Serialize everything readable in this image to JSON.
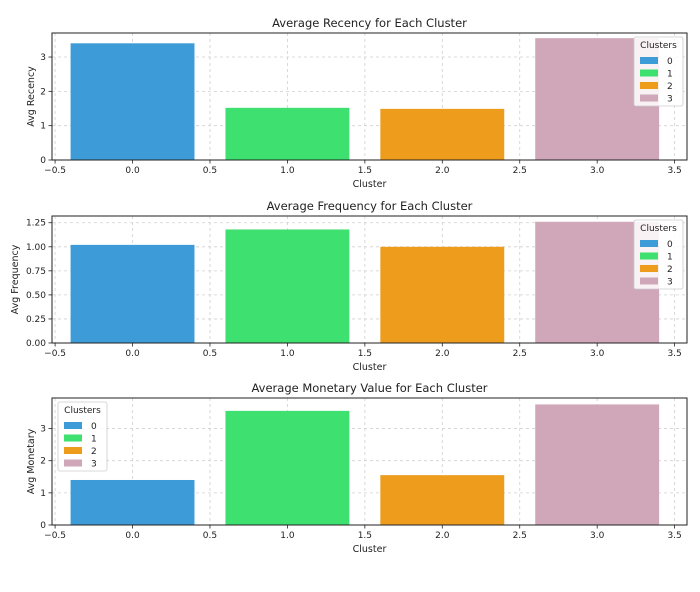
{
  "chart_data": [
    {
      "type": "bar",
      "title": "Average Recency for Each Cluster",
      "xlabel": "Cluster",
      "ylabel": "Avg Recency",
      "x": [
        0,
        1,
        2,
        3
      ],
      "values": [
        3.4,
        1.52,
        1.49,
        3.55
      ],
      "xlim": [
        -0.52,
        3.58
      ],
      "ylim": [
        0,
        3.7
      ],
      "xticks": [
        -0.5,
        0.0,
        0.5,
        1.0,
        1.5,
        2.0,
        2.5,
        3.0,
        3.5
      ],
      "xtick_labels": [
        "−0.5",
        "0.0",
        "0.5",
        "1.0",
        "1.5",
        "2.0",
        "2.5",
        "3.0",
        "3.5"
      ],
      "yticks": [
        0,
        1,
        2,
        3
      ],
      "ytick_labels": [
        "0",
        "1",
        "2",
        "3"
      ],
      "grid": true,
      "legend": {
        "title": "Clusters",
        "position": "top-right",
        "entries": [
          "0",
          "1",
          "2",
          "3"
        ]
      }
    },
    {
      "type": "bar",
      "title": "Average Frequency for Each Cluster",
      "xlabel": "Cluster",
      "ylabel": "Avg Frequency",
      "x": [
        0,
        1,
        2,
        3
      ],
      "values": [
        1.02,
        1.18,
        1.0,
        1.26
      ],
      "xlim": [
        -0.52,
        3.58
      ],
      "ylim": [
        0,
        1.32
      ],
      "xticks": [
        -0.5,
        0.0,
        0.5,
        1.0,
        1.5,
        2.0,
        2.5,
        3.0,
        3.5
      ],
      "xtick_labels": [
        "−0.5",
        "0.0",
        "0.5",
        "1.0",
        "1.5",
        "2.0",
        "2.5",
        "3.0",
        "3.5"
      ],
      "yticks": [
        0,
        0.25,
        0.5,
        0.75,
        1.0,
        1.25
      ],
      "ytick_labels": [
        "0.00",
        "0.25",
        "0.50",
        "0.75",
        "1.00",
        "1.25"
      ],
      "grid": true,
      "legend": {
        "title": "Clusters",
        "position": "top-right",
        "entries": [
          "0",
          "1",
          "2",
          "3"
        ]
      }
    },
    {
      "type": "bar",
      "title": "Average Monetary Value for Each Cluster",
      "xlabel": "Cluster",
      "ylabel": "Avg Monetary",
      "x": [
        0,
        1,
        2,
        3
      ],
      "values": [
        1.4,
        3.55,
        1.55,
        3.75
      ],
      "xlim": [
        -0.52,
        3.58
      ],
      "ylim": [
        0,
        3.95
      ],
      "xticks": [
        -0.5,
        0.0,
        0.5,
        1.0,
        1.5,
        2.0,
        2.5,
        3.0,
        3.5
      ],
      "xtick_labels": [
        "−0.5",
        "0.0",
        "0.5",
        "1.0",
        "1.5",
        "2.0",
        "2.5",
        "3.0",
        "3.5"
      ],
      "yticks": [
        0,
        1,
        2,
        3
      ],
      "ytick_labels": [
        "0",
        "1",
        "2",
        "3"
      ],
      "grid": true,
      "legend": {
        "title": "Clusters",
        "position": "top-left",
        "entries": [
          "0",
          "1",
          "2",
          "3"
        ]
      }
    }
  ],
  "colors": [
    "#3d9cd8",
    "#3ee06f",
    "#ee9c1c",
    "#cfa7b8"
  ]
}
